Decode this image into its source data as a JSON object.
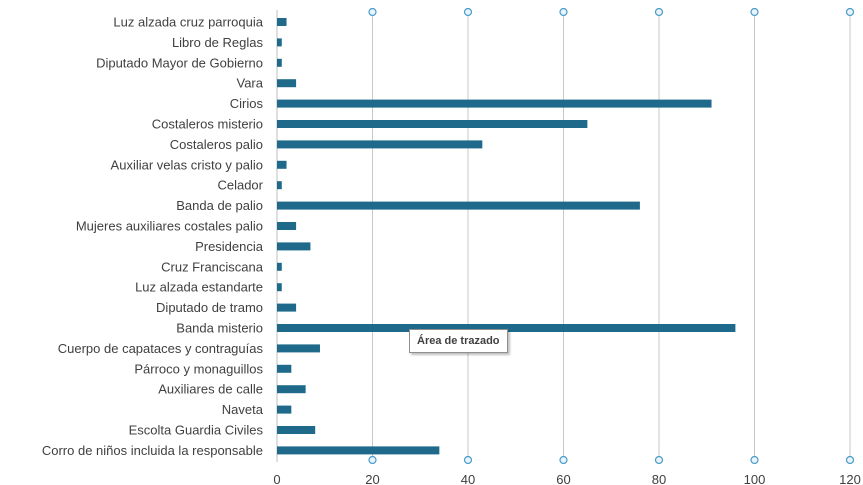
{
  "chart_data": {
    "type": "bar",
    "orientation": "horizontal",
    "title": "",
    "xlabel": "",
    "ylabel": "",
    "xlim": [
      0,
      120
    ],
    "x_ticks": [
      0,
      20,
      40,
      60,
      80,
      100,
      120
    ],
    "grid": true,
    "bar_color": "#1f6a8a",
    "categories": [
      "Luz alzada cruz parroquia",
      "Libro de Reglas",
      "Diputado Mayor de Gobierno",
      "Vara",
      "Cirios",
      "Costaleros misterio",
      "Costaleros palio",
      "Auxiliar velas cristo y palio",
      "Celador",
      "Banda de palio",
      "Mujeres auxiliares costales palio",
      "Presidencia",
      "Cruz Franciscana",
      "Luz alzada estandarte",
      "Diputado de tramo",
      "Banda misterio",
      "Cuerpo de capataces y contraguías",
      "Párroco y monaguillos",
      "Auxiliares de calle",
      "Naveta",
      "Escolta Guardia Civiles",
      "Corro de niños incluida la responsable"
    ],
    "values": [
      2,
      1,
      1,
      4,
      91,
      65,
      43,
      2,
      1,
      76,
      4,
      7,
      1,
      1,
      4,
      96,
      9,
      3,
      6,
      3,
      8,
      34
    ]
  },
  "tooltip": {
    "text": "Área de trazado"
  }
}
